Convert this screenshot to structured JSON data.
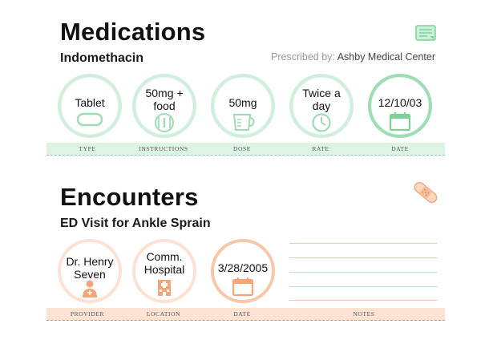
{
  "medications": {
    "title": "Medications",
    "drug": "Indomethacin",
    "prescribed_label": "Prescribed by:",
    "prescribed_by": "Ashby Medical Center",
    "items": [
      {
        "line1": "Tablet",
        "line2": "",
        "icon": "tablet-icon",
        "label": "TYPE"
      },
      {
        "line1": "50mg +",
        "line2": "food",
        "icon": "utensils-icon",
        "label": "INSTRUCTIONS"
      },
      {
        "line1": "50mg",
        "line2": "",
        "icon": "measuring-cup-icon",
        "label": "DOSE"
      },
      {
        "line1": "Twice a",
        "line2": "day",
        "icon": "clock-icon",
        "label": "RATE"
      },
      {
        "line1": "12/10/03",
        "line2": "",
        "icon": "calendar-icon",
        "label": "DATE"
      }
    ],
    "header_icon": "document-icon",
    "accent": "#9fdcb5"
  },
  "encounters": {
    "title": "Encounters",
    "visit": "ED Visit for Ankle Sprain",
    "items": [
      {
        "line1": "Dr. Henry",
        "line2": "Seven",
        "icon": "doctor-icon",
        "label": "PROVIDER"
      },
      {
        "line1": "Comm.",
        "line2": "Hospital",
        "icon": "hospital-icon",
        "label": "LOCATION"
      },
      {
        "line1": "3/28/2005",
        "line2": "",
        "icon": "calendar-icon",
        "label": "DATE"
      }
    ],
    "notes_label": "NOTES",
    "header_icon": "bandage-icon",
    "accent": "#f6c7a8"
  }
}
